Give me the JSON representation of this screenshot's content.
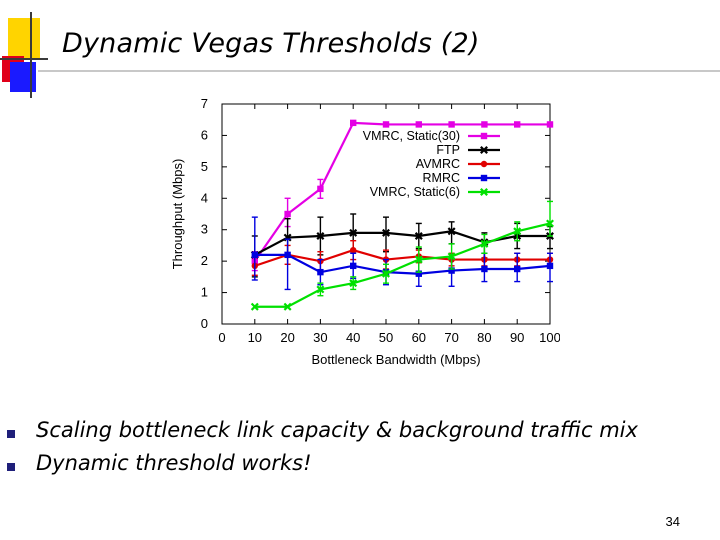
{
  "slide": {
    "title": "Dynamic Vegas Thresholds (2)",
    "bullets": [
      "Scaling bottleneck link capacity & background traffic mix",
      "Dynamic threshold works!"
    ],
    "page_number": "34"
  },
  "colors": {
    "deco_yellow": "#ffd400",
    "deco_blue": "#1a1aff",
    "deco_red": "#e0001a",
    "title_rule": "#c8c8c8",
    "bullet": "#1f1f7a"
  },
  "chart_data": {
    "type": "line",
    "title": "",
    "xlabel": "Bottleneck Bandwidth (Mbps)",
    "ylabel": "Throughput (Mbps)",
    "xlim": [
      0,
      100
    ],
    "ylim": [
      0,
      7
    ],
    "xticks": [
      0,
      10,
      20,
      30,
      40,
      50,
      60,
      70,
      80,
      90,
      100
    ],
    "yticks": [
      0,
      1,
      2,
      3,
      4,
      5,
      6,
      7
    ],
    "grid": false,
    "legend_position": "top-right",
    "error_bars": true,
    "x": [
      10,
      20,
      30,
      40,
      50,
      60,
      70,
      80,
      90,
      100
    ],
    "series": [
      {
        "name": "VMRC, Static(30)",
        "color": "#e400e4",
        "marker": "square",
        "values": [
          2.0,
          3.5,
          4.3,
          6.4,
          6.35,
          6.35,
          6.35,
          6.35,
          6.35,
          6.35
        ],
        "err_low": [
          0.3,
          0.4,
          0.3,
          0,
          0,
          0,
          0,
          0,
          0,
          0
        ],
        "err_high": [
          0.3,
          0.5,
          0.3,
          0,
          0,
          0,
          0,
          0,
          0,
          0
        ]
      },
      {
        "name": "FTP",
        "color": "#000000",
        "marker": "x",
        "values": [
          2.2,
          2.75,
          2.8,
          2.9,
          2.9,
          2.8,
          2.95,
          2.6,
          2.8,
          2.8
        ],
        "err_low": [
          0.7,
          0.6,
          0.6,
          0.6,
          0.6,
          0.4,
          0.4,
          0.5,
          0.4,
          0.4
        ],
        "err_high": [
          0.6,
          0.6,
          0.6,
          0.6,
          0.5,
          0.4,
          0.3,
          0.3,
          0.4,
          0.3
        ]
      },
      {
        "name": "AVMRC",
        "color": "#e00000",
        "marker": "circle",
        "values": [
          1.85,
          2.2,
          2.0,
          2.35,
          2.05,
          2.15,
          2.05,
          2.05,
          2.05,
          2.05
        ],
        "err_low": [
          0.3,
          0.3,
          0.3,
          0.3,
          0.3,
          0.2,
          0.2,
          0.2,
          0.2,
          0.2
        ],
        "err_high": [
          0.3,
          0.3,
          0.3,
          0.3,
          0.3,
          0.2,
          0.2,
          0.2,
          0.2,
          0.2
        ]
      },
      {
        "name": "RMRC",
        "color": "#0000e0",
        "marker": "square",
        "values": [
          2.2,
          2.2,
          1.65,
          1.85,
          1.65,
          1.6,
          1.7,
          1.75,
          1.75,
          1.85
        ],
        "err_low": [
          0.8,
          1.1,
          0.4,
          0.4,
          0.4,
          0.4,
          0.5,
          0.4,
          0.4,
          0.5
        ],
        "err_high": [
          1.2,
          0.5,
          0.4,
          0.4,
          0.4,
          0.4,
          0.4,
          0.5,
          0.5,
          0.4
        ]
      },
      {
        "name": "VMRC, Static(6)",
        "color": "#00e000",
        "marker": "x",
        "values": [
          0.55,
          0.55,
          1.1,
          1.3,
          1.6,
          2.05,
          2.15,
          2.55,
          2.95,
          3.2
        ],
        "err_low": [
          0,
          0,
          0.2,
          0.2,
          0.3,
          0.4,
          0.4,
          0.3,
          0.3,
          0.4
        ],
        "err_high": [
          0,
          0,
          0.2,
          0.2,
          0.3,
          0.4,
          0.4,
          0.3,
          0.3,
          0.7
        ]
      }
    ]
  }
}
